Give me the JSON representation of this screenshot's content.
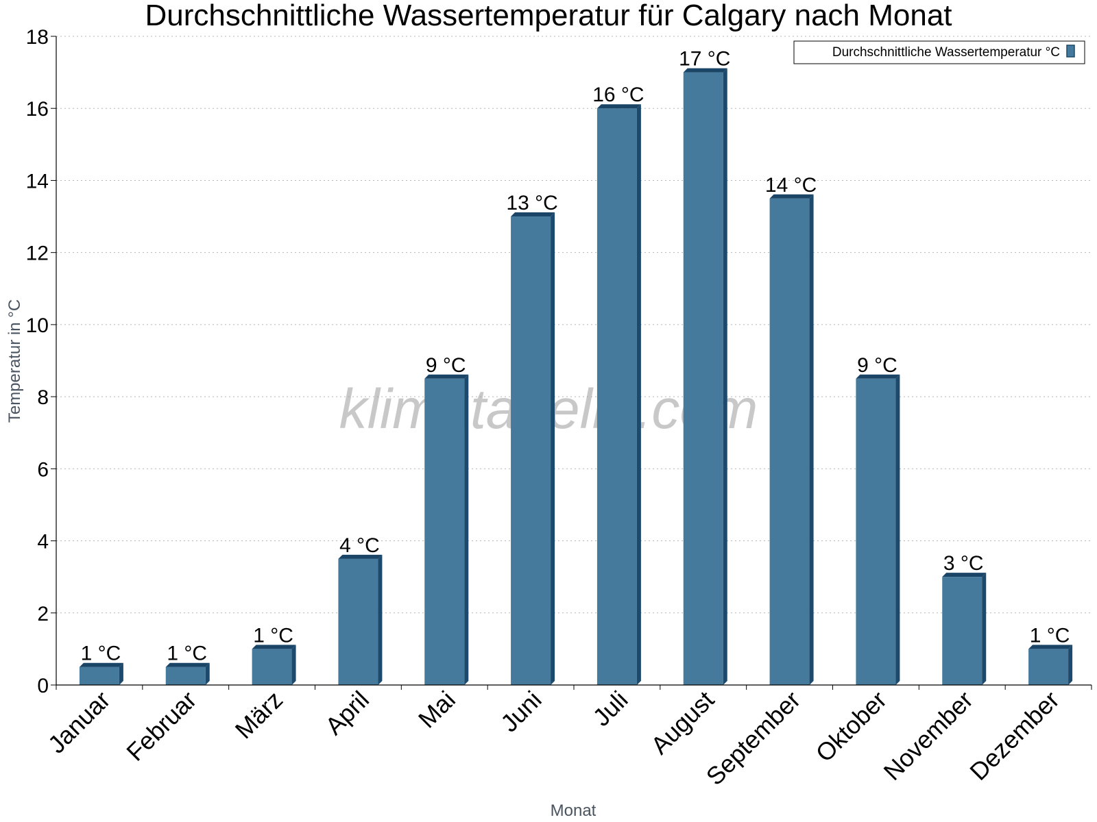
{
  "chart_data": {
    "type": "bar",
    "title": "Durchschnittliche Wassertemperatur für Calgary nach Monat",
    "xlabel": "Monat",
    "ylabel": "Temperatur in °C",
    "ylim": [
      0,
      18
    ],
    "yticks": [
      "0",
      "2",
      "4",
      "6",
      "8",
      "10",
      "12",
      "14",
      "16",
      "18"
    ],
    "grid": true,
    "legend_position": "top-right",
    "watermark": "klimatabelle.com",
    "categories": [
      "Januar",
      "Februar",
      "März",
      "April",
      "Mai",
      "Juni",
      "Juli",
      "August",
      "September",
      "Oktober",
      "November",
      "Dezember"
    ],
    "series": [
      {
        "name": "Durchschnittliche Wassertemperatur °C",
        "color": "#457a9c",
        "values": [
          0.5,
          0.5,
          1,
          3.5,
          8.5,
          13,
          16,
          17,
          13.5,
          8.5,
          3,
          1
        ],
        "data_labels": [
          "1 °C",
          "1 °C",
          "1 °C",
          "4 °C",
          "9 °C",
          "13 °C",
          "16 °C",
          "17 °C",
          "14 °C",
          "9 °C",
          "3 °C",
          "1 °C"
        ]
      }
    ]
  }
}
